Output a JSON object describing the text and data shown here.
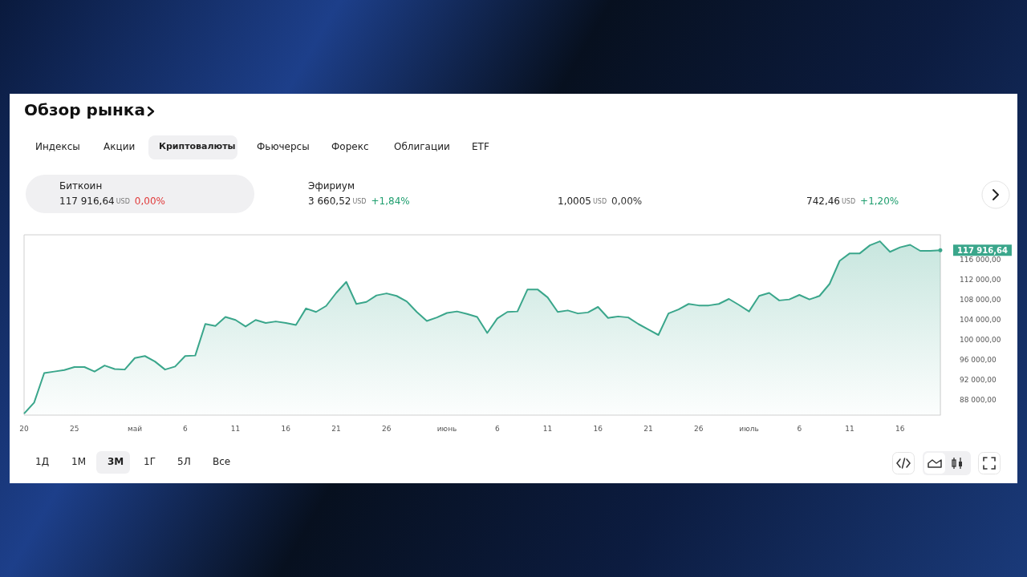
{
  "chart_data": {
    "type": "area",
    "title": "Обзор рынка",
    "annotations": [
      "Индексы",
      "Акции",
      "Криптовалюты",
      "Фьючерсы",
      "Форекс",
      "Облигации",
      "ETF",
      "Биткоин",
      "117 916,64",
      "USD",
      "0,00%",
      "Эфириум",
      "3 660,52",
      "USD",
      "+1,84%",
      "1,0005",
      "USD",
      "0,00%",
      "742,46",
      "USD",
      "+1,20%",
      "1Д",
      "1М",
      "3М",
      "1Г",
      "5Л",
      "Все",
      {
        "text": "117 916,64",
        "x": "--07-20",
        "y": 117916.64
      }
    ],
    "x": [
      "--04-20",
      "--04-21",
      "--04-22",
      "--04-23",
      "--04-24",
      "--04-25",
      "--04-26",
      "--04-27",
      "--04-28",
      "--04-29",
      "--04-30",
      "--05-01",
      "--05-02",
      "--05-03",
      "--05-04",
      "--05-05",
      "--05-06",
      "--05-07",
      "--05-08",
      "--05-09",
      "--05-10",
      "--05-11",
      "--05-12",
      "--05-13",
      "--05-14",
      "--05-15",
      "--05-16",
      "--05-17",
      "--05-18",
      "--05-19",
      "--05-20",
      "--05-21",
      "--05-22",
      "--05-23",
      "--05-24",
      "--05-25",
      "--05-26",
      "--05-27",
      "--05-28",
      "--05-29",
      "--05-30",
      "--05-31",
      "--06-01",
      "--06-02",
      "--06-03",
      "--06-04",
      "--06-05",
      "--06-06",
      "--06-07",
      "--06-08",
      "--06-09",
      "--06-10",
      "--06-11",
      "--06-12",
      "--06-13",
      "--06-14",
      "--06-15",
      "--06-16",
      "--06-17",
      "--06-18",
      "--06-19",
      "--06-20",
      "--06-21",
      "--06-22",
      "--06-23",
      "--06-24",
      "--06-25",
      "--06-26",
      "--06-27",
      "--06-28",
      "--06-29",
      "--06-30",
      "--07-01",
      "--07-02",
      "--07-03",
      "--07-04",
      "--07-05",
      "--07-06",
      "--07-07",
      "--07-08",
      "--07-09",
      "--07-10",
      "--07-11",
      "--07-12",
      "--07-13",
      "--07-14",
      "--07-15",
      "--07-16",
      "--07-17",
      "--07-18",
      "--07-19",
      "--07-20"
    ],
    "series": [
      {
        "color": "#3aa68b",
        "values": [
          85300,
          87500,
          93400,
          93700,
          94000,
          94600,
          94600,
          93700,
          94900,
          94200,
          94100,
          96400,
          96800,
          95700,
          94100,
          94700,
          96800,
          96900,
          103200,
          102800,
          104600,
          104000,
          102700,
          104000,
          103400,
          103700,
          103400,
          103000,
          106300,
          105600,
          106800,
          109400,
          111600,
          107200,
          107600,
          108900,
          109300,
          108800,
          107700,
          105600,
          103800,
          104500,
          105400,
          105700,
          105200,
          104600,
          101400,
          104300,
          105600,
          105700,
          110100,
          110100,
          108500,
          105600,
          105900,
          105300,
          105500,
          106600,
          104400,
          104700,
          104500,
          103200,
          102100,
          101000,
          105300,
          106100,
          107200,
          106900,
          106900,
          107200,
          108200,
          107000,
          105700,
          108800,
          109400,
          107900,
          108100,
          109000,
          108100,
          108800,
          111200,
          115800,
          117300,
          117300,
          118900,
          119700,
          117600,
          118500,
          119000,
          117800,
          117800,
          117916.64
        ]
      }
    ],
    "xticks": [
      {
        "value": "--04-20",
        "label": "20"
      },
      {
        "value": "--04-25",
        "label": "25"
      },
      {
        "value": "--05-01",
        "label": "май"
      },
      {
        "value": "--05-06",
        "label": "6"
      },
      {
        "value": "--05-11",
        "label": "11"
      },
      {
        "value": "--05-16",
        "label": "16"
      },
      {
        "value": "--05-21",
        "label": "21"
      },
      {
        "value": "--05-26",
        "label": "26"
      },
      {
        "value": "--06-01",
        "label": "июнь"
      },
      {
        "value": "--06-06",
        "label": "6"
      },
      {
        "value": "--06-11",
        "label": "11"
      },
      {
        "value": "--06-16",
        "label": "16"
      },
      {
        "value": "--06-21",
        "label": "21"
      },
      {
        "value": "--06-26",
        "label": "26"
      },
      {
        "value": "--07-01",
        "label": "июль"
      },
      {
        "value": "--07-06",
        "label": "6"
      },
      {
        "value": "--07-11",
        "label": "11"
      },
      {
        "value": "--07-16",
        "label": "16"
      }
    ],
    "xlim": [
      "--04-20",
      "--07-20"
    ],
    "ylim": [
      85000,
      121000
    ],
    "yticks": [
      {
        "value": 88000,
        "label": "88 000,00"
      },
      {
        "value": 92000,
        "label": "92 000,00"
      },
      {
        "value": 96000,
        "label": "96 000,00"
      },
      {
        "value": 100000,
        "label": "100 000,00"
      },
      {
        "value": 104000,
        "label": "104 000,00"
      },
      {
        "value": 108000,
        "label": "108 000,00"
      },
      {
        "value": 112000,
        "label": "112 000,00"
      },
      {
        "value": 116000,
        "label": "116 000,00"
      }
    ],
    "grid": false
  }
}
